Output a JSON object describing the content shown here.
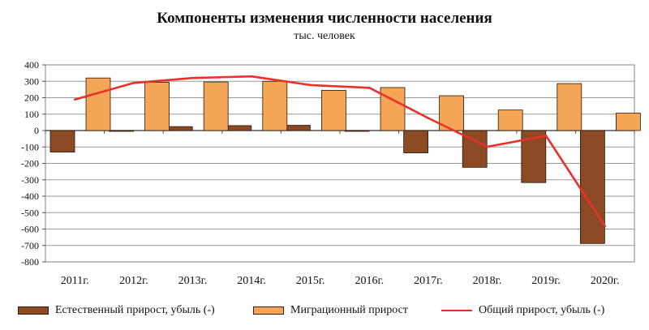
{
  "chart_data": {
    "type": "bar",
    "title": "Компоненты изменения численности населения",
    "subtitle": "тыс. человек",
    "categories": [
      "2011г.",
      "2012г.",
      "2013г.",
      "2014г.",
      "2015г.",
      "2016г.",
      "2017г.",
      "2018г.",
      "2019г.",
      "2020г."
    ],
    "ylim": [
      -800,
      400
    ],
    "yticks": [
      400,
      300,
      200,
      100,
      0,
      -100,
      -200,
      -300,
      -400,
      -500,
      -600,
      -700,
      -800
    ],
    "grid": true,
    "legend_position": "bottom",
    "series": [
      {
        "name": "Естественный прирост, убыль (-)",
        "type": "bar",
        "color": "#8B4A24",
        "values": [
          -131,
          -4,
          24,
          30,
          32,
          -2,
          -136,
          -224,
          -317,
          -688
        ]
      },
      {
        "name": "Миграционный прирост",
        "type": "bar",
        "color": "#F5A556",
        "values": [
          320,
          294,
          296,
          300,
          245,
          262,
          212,
          125,
          286,
          106
        ]
      },
      {
        "name": "Общий прирост, убыль (-)",
        "type": "line",
        "color": "#E8312A",
        "values": [
          189,
          290,
          320,
          330,
          277,
          260,
          76,
          -99,
          -32,
          -582
        ]
      }
    ]
  }
}
